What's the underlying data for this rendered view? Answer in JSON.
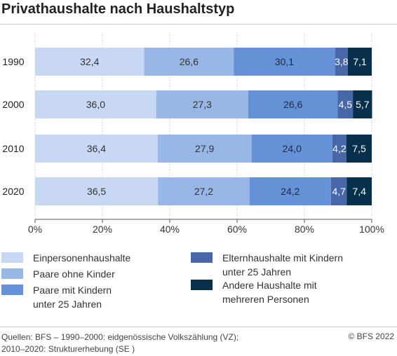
{
  "title": "Privathaushalte nach Haushaltstyp",
  "chart_data": {
    "type": "bar",
    "orientation": "horizontal",
    "stacked": true,
    "categories": [
      "1990",
      "2000",
      "2010",
      "2020"
    ],
    "series": [
      {
        "name": "Einpersonenhaushalte",
        "color": "#c8d8f4",
        "labels": [
          "32,4",
          "36,0",
          "36,4",
          "36,5"
        ],
        "values": [
          32.4,
          36.0,
          36.4,
          36.5
        ]
      },
      {
        "name": "Paare ohne Kinder",
        "color": "#98b6e6",
        "labels": [
          "26,6",
          "27,3",
          "27,9",
          "27,2"
        ],
        "values": [
          26.6,
          27.3,
          27.9,
          27.2
        ]
      },
      {
        "name": "Paare mit Kindern unter 25 Jahren",
        "color": "#6592d6",
        "labels": [
          "30,1",
          "26,6",
          "24,0",
          "24,2"
        ],
        "values": [
          30.1,
          26.6,
          24.0,
          24.2
        ]
      },
      {
        "name": "Elternhaushalte mit Kindern unter 25 Jahren",
        "color": "#4767a8",
        "labels": [
          "3,8",
          "4,5",
          "4,2",
          "4,7"
        ],
        "values": [
          3.8,
          4.5,
          4.2,
          4.7
        ]
      },
      {
        "name": "Andere Haushalte mit mehreren Personen",
        "color": "#07304c",
        "labels": [
          "7,1",
          "5,7",
          "7,5",
          "7,4"
        ],
        "values": [
          7.1,
          5.7,
          7.5,
          7.4
        ]
      }
    ],
    "xaxis": {
      "min": 0,
      "max": 100,
      "ticks": [
        0,
        20,
        40,
        60,
        80,
        100
      ],
      "tick_labels": [
        "0%",
        "20%",
        "40%",
        "60%",
        "80%",
        "100%"
      ]
    },
    "grid": true,
    "legend_position": "bottom"
  },
  "legend": {
    "items": [
      {
        "label": "Einpersonenhaushalte",
        "color": "#c8d8f4"
      },
      {
        "label": "Paare ohne Kinder",
        "color": "#98b6e6"
      },
      {
        "label": "Paare mit Kindern\nunter 25 Jahren",
        "color": "#6592d6"
      },
      {
        "label": "Elternhaushalte mit Kindern\nunter 25 Jahren",
        "color": "#4767a8"
      },
      {
        "label": "Andere Haushalte mit\nmehreren Personen",
        "color": "#07304c"
      }
    ]
  },
  "footer": {
    "source": "Quellen: BFS – 1990–2000: eidgenössische Volkszählung (VZ);\n2010–2020: Strukturerhebung (SE )",
    "copyright": "© BFS 2022"
  }
}
